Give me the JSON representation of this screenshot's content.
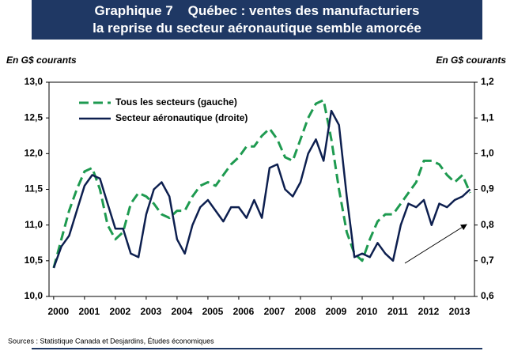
{
  "chart_data": {
    "type": "line",
    "title": "Graphique 7    Québec : ventes des manufacturiers",
    "subtitle": "la reprise du secteur aéronautique semble amorcée",
    "ylabel": "En G$ courants",
    "y2label": "En G$ courants",
    "source": "Sources : Statistique Canada et Desjardins, Études économiques",
    "x": [
      2000,
      2000.25,
      2000.5,
      2000.75,
      2001,
      2001.25,
      2001.5,
      2001.75,
      2002,
      2002.25,
      2002.5,
      2002.75,
      2003,
      2003.25,
      2003.5,
      2003.75,
      2004,
      2004.25,
      2004.5,
      2004.75,
      2005,
      2005.25,
      2005.5,
      2005.75,
      2006,
      2006.25,
      2006.5,
      2006.75,
      2007,
      2007.25,
      2007.5,
      2007.75,
      2008,
      2008.25,
      2008.5,
      2008.75,
      2009,
      2009.25,
      2009.5,
      2009.75,
      2010,
      2010.25,
      2010.5,
      2010.75,
      2011,
      2011.25,
      2011.5,
      2011.75,
      2012,
      2012.25,
      2012.5,
      2012.75,
      2013,
      2013.25,
      2013.5
    ],
    "xlim": [
      1999.85,
      2013.64
    ],
    "xticks": [
      2000,
      2001,
      2002,
      2003,
      2004,
      2005,
      2006,
      2007,
      2008,
      2009,
      2010,
      2011,
      2012,
      2013
    ],
    "ylim": [
      10,
      13
    ],
    "yticks": [
      {
        "value": 10,
        "label": "10,0"
      },
      {
        "value": 10.5,
        "label": "10,5"
      },
      {
        "value": 11,
        "label": "11,0"
      },
      {
        "value": 11.5,
        "label": "11,5"
      },
      {
        "value": 12,
        "label": "12,0"
      },
      {
        "value": 12.5,
        "label": "12,5"
      },
      {
        "value": 13,
        "label": "13,0"
      }
    ],
    "y2lim": [
      0.6,
      1.2
    ],
    "y2ticks": [
      {
        "value": 0.6,
        "label": "0,6"
      },
      {
        "value": 0.7,
        "label": "0,7"
      },
      {
        "value": 0.8,
        "label": "0,8"
      },
      {
        "value": 0.9,
        "label": "0,9"
      },
      {
        "value": 1.0,
        "label": "1,0"
      },
      {
        "value": 1.1,
        "label": "1,1"
      },
      {
        "value": 1.2,
        "label": "1,2"
      }
    ],
    "legend": "upper left",
    "series": [
      {
        "name": "Tous les secteurs (gauche)",
        "color": "#1e9a50",
        "dashed": true,
        "values": [
          10.4,
          10.8,
          11.2,
          11.5,
          11.75,
          11.8,
          11.5,
          11.0,
          10.8,
          10.9,
          11.3,
          11.45,
          11.4,
          11.3,
          11.15,
          11.1,
          11.2,
          11.2,
          11.4,
          11.55,
          11.6,
          11.55,
          11.7,
          11.85,
          11.95,
          12.1,
          12.1,
          12.25,
          12.35,
          12.2,
          11.95,
          11.9,
          12.2,
          12.5,
          12.7,
          12.75,
          12.2,
          11.5,
          10.9,
          10.6,
          10.5,
          10.8,
          11.05,
          11.15,
          11.15,
          11.3,
          11.45,
          11.6,
          11.9,
          11.9,
          11.85,
          11.7,
          11.6,
          11.7,
          11.45
        ]
      },
      {
        "name": "Secteur aéronautique (droite)",
        "color": "#0d1f4f",
        "axis": "y2",
        "values": [
          0.68,
          0.74,
          0.77,
          0.84,
          0.91,
          0.94,
          0.93,
          0.86,
          0.79,
          0.79,
          0.72,
          0.71,
          0.83,
          0.9,
          0.92,
          0.88,
          0.76,
          0.72,
          0.8,
          0.85,
          0.87,
          0.84,
          0.81,
          0.85,
          0.85,
          0.82,
          0.87,
          0.82,
          0.96,
          0.97,
          0.9,
          0.88,
          0.92,
          1.0,
          1.04,
          0.98,
          1.12,
          1.08,
          0.88,
          0.71,
          0.72,
          0.71,
          0.75,
          0.72,
          0.7,
          0.8,
          0.86,
          0.85,
          0.87,
          0.8,
          0.86,
          0.85,
          0.87,
          0.88,
          0.9
        ]
      }
    ]
  }
}
